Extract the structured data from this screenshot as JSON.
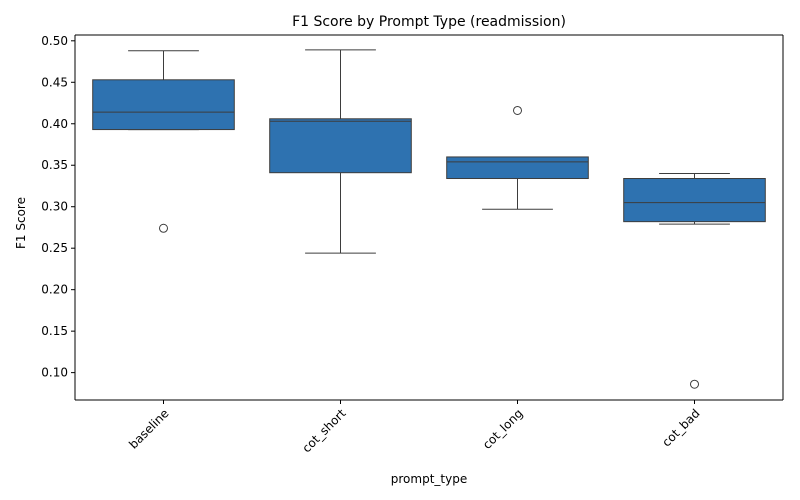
{
  "chart_data": {
    "type": "box",
    "title": "F1 Score by Prompt Type (readmission)",
    "xlabel": "prompt_type",
    "ylabel": "F1 Score",
    "ylim": [
      0.067,
      0.507
    ],
    "yticks": [
      0.1,
      0.15,
      0.2,
      0.25,
      0.3,
      0.35,
      0.4,
      0.45,
      0.5
    ],
    "ytick_labels": [
      "0.10",
      "0.15",
      "0.20",
      "0.25",
      "0.30",
      "0.35",
      "0.40",
      "0.45",
      "0.50"
    ],
    "categories": [
      "baseline",
      "cot_short",
      "cot_long",
      "cot_bad"
    ],
    "boxes": [
      {
        "category": "baseline",
        "whisker_low": 0.393,
        "q1": 0.393,
        "median": 0.414,
        "q3": 0.453,
        "whisker_high": 0.488,
        "outliers": [
          0.274
        ]
      },
      {
        "category": "cot_short",
        "whisker_low": 0.244,
        "q1": 0.341,
        "median": 0.403,
        "q3": 0.406,
        "whisker_high": 0.489,
        "outliers": []
      },
      {
        "category": "cot_long",
        "whisker_low": 0.297,
        "q1": 0.334,
        "median": 0.354,
        "q3": 0.36,
        "whisker_high": 0.36,
        "outliers": [
          0.416
        ]
      },
      {
        "category": "cot_bad",
        "whisker_low": 0.279,
        "q1": 0.282,
        "median": 0.305,
        "q3": 0.334,
        "whisker_high": 0.34,
        "outliers": [
          0.086
        ]
      }
    ],
    "box_color": "#2e72b0",
    "line_color": "#3d3d3d",
    "grid": false,
    "legend": "none"
  }
}
